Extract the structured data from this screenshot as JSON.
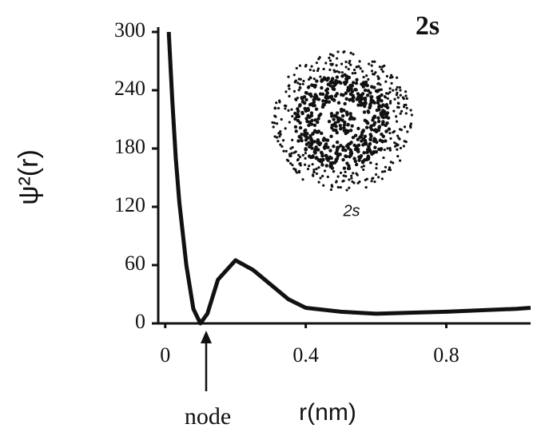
{
  "chart_data": {
    "type": "line",
    "title": "2s",
    "inset_label": "2s",
    "annotation": "node",
    "x_label": "r(nm)",
    "y_label": "ψ²(r)",
    "x": [
      0.01,
      0.02,
      0.03,
      0.04,
      0.06,
      0.08,
      0.1,
      0.12,
      0.15,
      0.2,
      0.25,
      0.3,
      0.35,
      0.4,
      0.5,
      0.6,
      0.8,
      1.0,
      1.04
    ],
    "series": [
      {
        "name": "ψ²(r)",
        "color": "#111111",
        "values": [
          300,
          230,
          170,
          125,
          60,
          15,
          0,
          10,
          45,
          65,
          55,
          40,
          25,
          16,
          12,
          10,
          12,
          15,
          16
        ]
      }
    ],
    "xlim": [
      -0.02,
      1.04
    ],
    "ylim": [
      0,
      300
    ],
    "xticks": [
      0,
      0.4,
      0.8
    ],
    "yticks": [
      0,
      60,
      120,
      180,
      240,
      300
    ]
  }
}
